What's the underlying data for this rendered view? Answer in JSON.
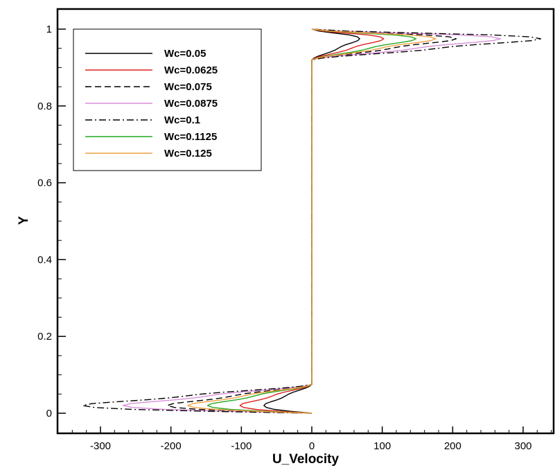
{
  "chart_data": {
    "type": "line",
    "title": "",
    "xlabel": "U_Velocity",
    "ylabel": "Y",
    "xlim": [
      -350,
      350
    ],
    "ylim": [
      -0.05,
      1.05
    ],
    "x_ticks": [
      -300,
      -200,
      -100,
      0,
      100,
      200,
      300
    ],
    "y_ticks": [
      0,
      0.2,
      0.4,
      0.6,
      0.8,
      1
    ],
    "y_tick_labels": [
      "0",
      "0.2",
      "0.4",
      "0.6",
      "0.8",
      "1"
    ],
    "grid": false,
    "legend_placement": "top-left",
    "series": [
      {
        "name": "Wc=0.05",
        "color": "#000000",
        "dash": "solid",
        "peak": 68
      },
      {
        "name": "Wc=0.0625",
        "color": "#e02020",
        "dash": "solid",
        "peak": 102
      },
      {
        "name": "Wc=0.075",
        "color": "#000000",
        "dash": "dashed",
        "peak": 205
      },
      {
        "name": "Wc=0.0875",
        "color": "#d88ed8",
        "dash": "solid",
        "peak": 268
      },
      {
        "name": "Wc=0.1",
        "color": "#000000",
        "dash": "dashdot",
        "peak": 325
      },
      {
        "name": "Wc=0.1125",
        "color": "#22aa22",
        "dash": "solid",
        "peak": 148
      },
      {
        "name": "Wc=0.125",
        "color": "#f0a040",
        "dash": "solid",
        "peak": 176
      }
    ],
    "profile": {
      "y": [
        0,
        0.005,
        0.01,
        0.015,
        0.02,
        0.025,
        0.03,
        0.035,
        0.04,
        0.045,
        0.05,
        0.055,
        0.06,
        0.065,
        0.07,
        0.075,
        0.08,
        0.5,
        0.92,
        0.925,
        0.93,
        0.935,
        0.94,
        0.945,
        0.95,
        0.955,
        0.96,
        0.965,
        0.97,
        0.975,
        0.98,
        0.985,
        0.99,
        0.995,
        1
      ],
      "x_fraction": [
        0,
        -0.45,
        -0.78,
        -0.95,
        -1.0,
        -0.96,
        -0.85,
        -0.72,
        -0.62,
        -0.55,
        -0.48,
        -0.38,
        -0.26,
        -0.14,
        -0.05,
        0,
        0,
        0,
        0,
        0.05,
        0.14,
        0.26,
        0.38,
        0.48,
        0.55,
        0.62,
        0.72,
        0.85,
        0.96,
        1.0,
        0.95,
        0.78,
        0.45,
        0.15,
        0
      ]
    }
  }
}
